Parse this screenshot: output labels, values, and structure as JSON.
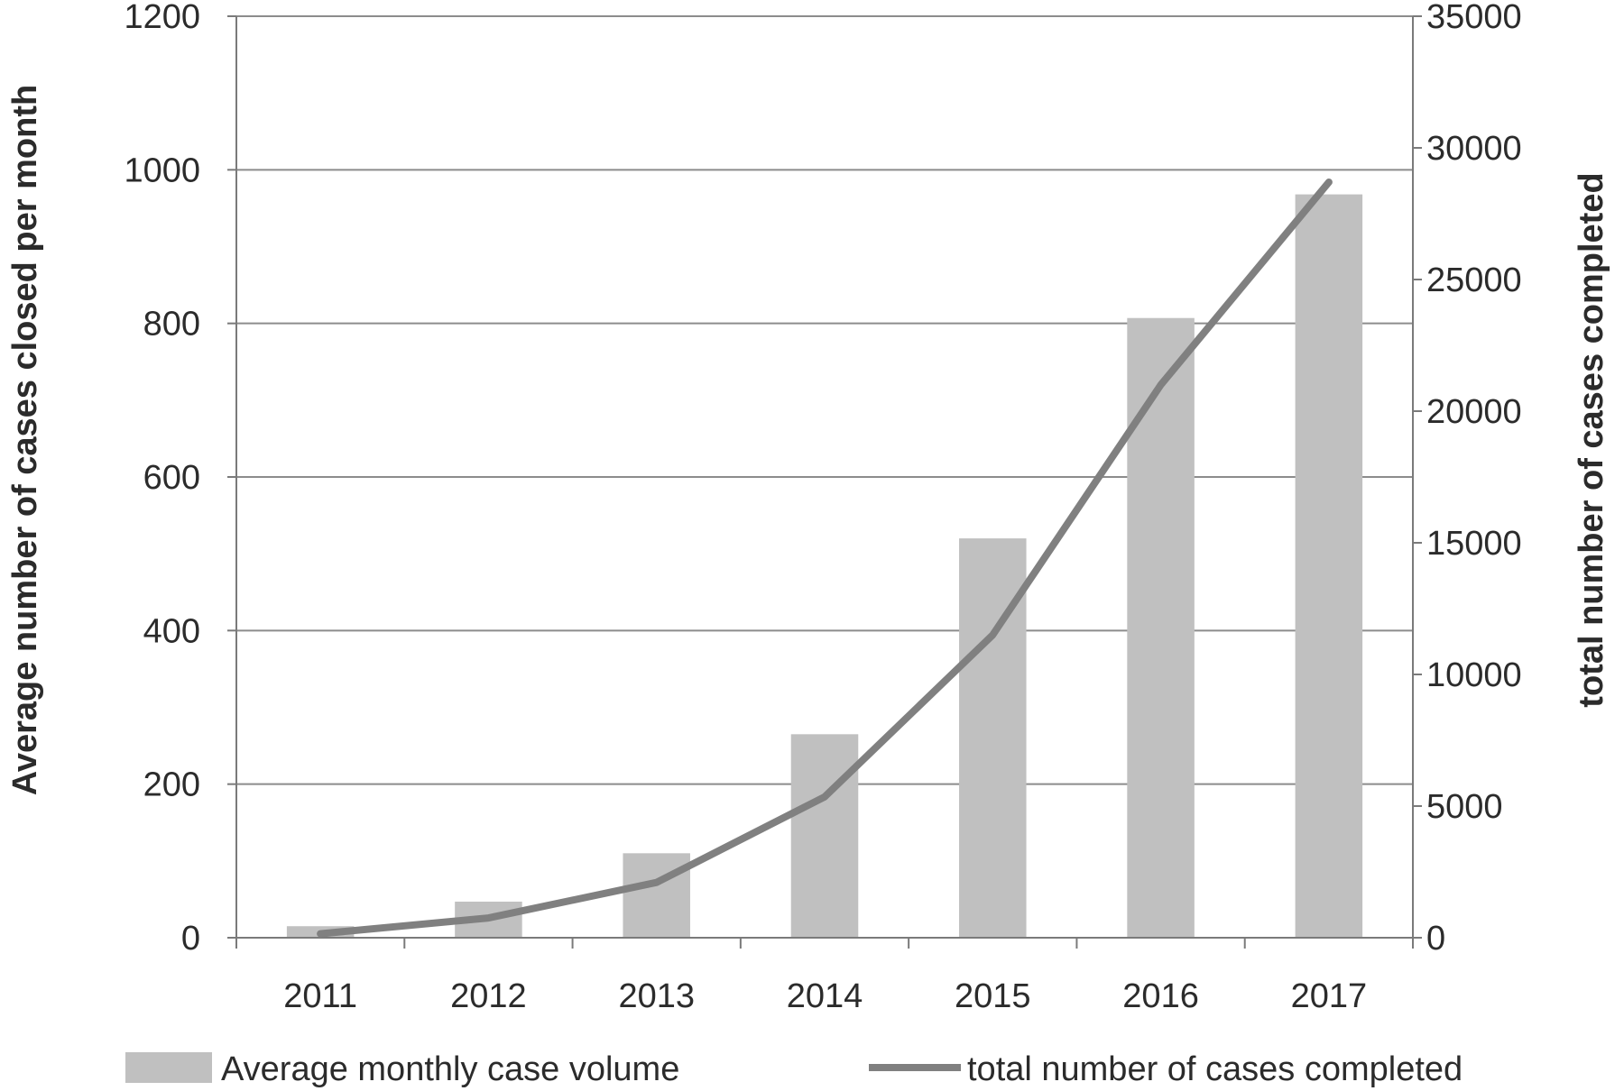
{
  "chart_data": {
    "type": "bar",
    "categories": [
      "2011",
      "2012",
      "2013",
      "2014",
      "2015",
      "2016",
      "2017"
    ],
    "series": [
      {
        "name": "Average monthly case volume",
        "type": "bar",
        "axis": "left",
        "color": "#c0c0c0",
        "values": [
          15,
          47,
          110,
          265,
          520,
          807,
          968
        ]
      },
      {
        "name": "total number of cases completed",
        "type": "line",
        "axis": "right",
        "color": "#808080",
        "values": [
          150,
          750,
          2100,
          5350,
          11500,
          21000,
          28700
        ]
      }
    ],
    "ylabel": "Average number of cases closed  per month",
    "ylabel_right": "total number of cases completed",
    "xlabel": "",
    "ylim": [
      0,
      1200
    ],
    "ylim_right": [
      0,
      35000
    ],
    "yticks": [
      "0",
      "200",
      "400",
      "600",
      "800",
      "1000",
      "1200"
    ],
    "yticks_right": [
      "0",
      "5000",
      "10000",
      "15000",
      "20000",
      "25000",
      "30000",
      "35000"
    ],
    "grid": true,
    "legend_position": "bottom"
  }
}
